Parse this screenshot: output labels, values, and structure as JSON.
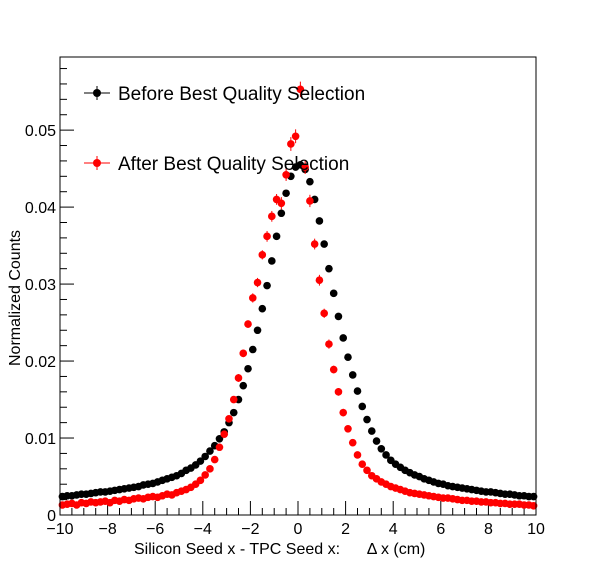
{
  "chart_data": {
    "type": "scatter",
    "title": "",
    "xlabel": "Silicon Seed x - TPC Seed x:      Δ x (cm)",
    "ylabel": "Normalized Counts",
    "xlim": [
      -10,
      10
    ],
    "ylim": [
      0,
      0.0595
    ],
    "x_ticks": [
      -10,
      -8,
      -6,
      -4,
      -2,
      0,
      2,
      4,
      6,
      8,
      10
    ],
    "x_tick_labels": [
      "−10",
      "−8",
      "−6",
      "−4",
      "−2",
      "0",
      "2",
      "4",
      "6",
      "8",
      "10"
    ],
    "y_ticks": [
      0,
      0.01,
      0.02,
      0.03,
      0.04,
      0.05
    ],
    "y_tick_labels": [
      "0",
      "0.01",
      "0.02",
      "0.03",
      "0.04",
      "0.05"
    ],
    "grid": false,
    "legend_position": "top-left",
    "series": [
      {
        "name": "Before Best Quality Selection",
        "color": "#000000",
        "x": [
          -9.9,
          -9.7,
          -9.5,
          -9.3,
          -9.1,
          -8.9,
          -8.7,
          -8.5,
          -8.3,
          -8.1,
          -7.9,
          -7.7,
          -7.5,
          -7.3,
          -7.1,
          -6.9,
          -6.7,
          -6.5,
          -6.3,
          -6.1,
          -5.9,
          -5.7,
          -5.5,
          -5.3,
          -5.1,
          -4.9,
          -4.7,
          -4.5,
          -4.3,
          -4.1,
          -3.9,
          -3.7,
          -3.5,
          -3.3,
          -3.1,
          -2.9,
          -2.7,
          -2.5,
          -2.3,
          -2.1,
          -1.9,
          -1.7,
          -1.5,
          -1.3,
          -1.1,
          -0.9,
          -0.7,
          -0.5,
          -0.3,
          -0.1,
          0.1,
          0.3,
          0.5,
          0.7,
          0.9,
          1.1,
          1.3,
          1.5,
          1.7,
          1.9,
          2.1,
          2.3,
          2.5,
          2.7,
          2.9,
          3.1,
          3.3,
          3.5,
          3.7,
          3.9,
          4.1,
          4.3,
          4.5,
          4.7,
          4.9,
          5.1,
          5.3,
          5.5,
          5.7,
          5.9,
          6.1,
          6.3,
          6.5,
          6.7,
          6.9,
          7.1,
          7.3,
          7.5,
          7.7,
          7.9,
          8.1,
          8.3,
          8.5,
          8.7,
          8.9,
          9.1,
          9.3,
          9.5,
          9.7,
          9.9
        ],
        "values": [
          0.0024,
          0.0025,
          0.0025,
          0.0026,
          0.0027,
          0.0027,
          0.0028,
          0.0029,
          0.003,
          0.003,
          0.0031,
          0.0032,
          0.0033,
          0.0034,
          0.0035,
          0.0036,
          0.0037,
          0.0039,
          0.004,
          0.0041,
          0.0043,
          0.0045,
          0.0047,
          0.0049,
          0.0051,
          0.0054,
          0.0058,
          0.0061,
          0.0065,
          0.007,
          0.0076,
          0.0083,
          0.009,
          0.0099,
          0.0108,
          0.012,
          0.0133,
          0.015,
          0.0168,
          0.019,
          0.0215,
          0.024,
          0.0268,
          0.0298,
          0.033,
          0.0362,
          0.0392,
          0.0418,
          0.044,
          0.0452,
          0.0455,
          0.0449,
          0.0433,
          0.041,
          0.0382,
          0.0352,
          0.032,
          0.0288,
          0.0258,
          0.023,
          0.0205,
          0.0182,
          0.0161,
          0.0141,
          0.0124,
          0.0109,
          0.0096,
          0.0086,
          0.0078,
          0.0071,
          0.0066,
          0.0062,
          0.0058,
          0.0055,
          0.0052,
          0.005,
          0.0047,
          0.0045,
          0.0043,
          0.0041,
          0.004,
          0.0038,
          0.0037,
          0.0036,
          0.0035,
          0.0034,
          0.0033,
          0.0032,
          0.0031,
          0.003,
          0.003,
          0.0029,
          0.0028,
          0.0027,
          0.0027,
          0.0026,
          0.0025,
          0.0025,
          0.0024,
          0.0024
        ],
        "errors": [
          0.0001,
          0.0001,
          0.0001,
          0.0001,
          0.0001,
          0.0001,
          0.0001,
          0.0001,
          0.0001,
          0.0001,
          0.0001,
          0.0001,
          0.0001,
          0.0001,
          0.0001,
          0.0001,
          0.0001,
          0.0001,
          0.0001,
          0.0001,
          0.0001,
          0.0001,
          0.0001,
          0.0001,
          0.0001,
          0.0001,
          0.0001,
          0.0001,
          0.0001,
          0.0001,
          0.0001,
          0.0001,
          0.0001,
          0.0002,
          0.0002,
          0.0002,
          0.0002,
          0.0002,
          0.0002,
          0.0002,
          0.0002,
          0.0003,
          0.0003,
          0.0003,
          0.0003,
          0.0003,
          0.0003,
          0.0003,
          0.0003,
          0.0003,
          0.0003,
          0.0003,
          0.0003,
          0.0003,
          0.0003,
          0.0003,
          0.0003,
          0.0003,
          0.0003,
          0.0002,
          0.0002,
          0.0002,
          0.0002,
          0.0002,
          0.0002,
          0.0002,
          0.0002,
          0.0001,
          0.0001,
          0.0001,
          0.0001,
          0.0001,
          0.0001,
          0.0001,
          0.0001,
          0.0001,
          0.0001,
          0.0001,
          0.0001,
          0.0001,
          0.0001,
          0.0001,
          0.0001,
          0.0001,
          0.0001,
          0.0001,
          0.0001,
          0.0001,
          0.0001,
          0.0001,
          0.0001,
          0.0001,
          0.0001,
          0.0001,
          0.0001,
          0.0001,
          0.0001,
          0.0001,
          0.0001,
          0.0001
        ]
      },
      {
        "name": "After Best Quality Selection",
        "color": "#ff0000",
        "x": [
          -9.9,
          -9.7,
          -9.5,
          -9.3,
          -9.1,
          -8.9,
          -8.7,
          -8.5,
          -8.3,
          -8.1,
          -7.9,
          -7.7,
          -7.5,
          -7.3,
          -7.1,
          -6.9,
          -6.7,
          -6.5,
          -6.3,
          -6.1,
          -5.9,
          -5.7,
          -5.5,
          -5.3,
          -5.1,
          -4.9,
          -4.7,
          -4.5,
          -4.3,
          -4.1,
          -3.9,
          -3.7,
          -3.5,
          -3.3,
          -3.1,
          -2.9,
          -2.7,
          -2.5,
          -2.3,
          -2.1,
          -1.9,
          -1.7,
          -1.5,
          -1.3,
          -1.1,
          -0.9,
          -0.7,
          -0.5,
          -0.3,
          -0.1,
          0.1,
          0.3,
          0.5,
          0.7,
          0.9,
          1.1,
          1.3,
          1.5,
          1.7,
          1.9,
          2.1,
          2.3,
          2.5,
          2.7,
          2.9,
          3.1,
          3.3,
          3.5,
          3.7,
          3.9,
          4.1,
          4.3,
          4.5,
          4.7,
          4.9,
          5.1,
          5.3,
          5.5,
          5.7,
          5.9,
          6.1,
          6.3,
          6.5,
          6.7,
          6.9,
          7.1,
          7.3,
          7.5,
          7.7,
          7.9,
          8.1,
          8.3,
          8.5,
          8.7,
          8.9,
          9.1,
          9.3,
          9.5,
          9.7,
          9.9
        ],
        "values": [
          0.0013,
          0.0014,
          0.0015,
          0.0013,
          0.0016,
          0.0015,
          0.0017,
          0.0016,
          0.0017,
          0.0018,
          0.0016,
          0.0019,
          0.0018,
          0.002,
          0.0019,
          0.0021,
          0.0022,
          0.0021,
          0.0023,
          0.0024,
          0.0023,
          0.0025,
          0.0027,
          0.0026,
          0.0029,
          0.0031,
          0.0033,
          0.0036,
          0.004,
          0.0045,
          0.0052,
          0.006,
          0.0072,
          0.0088,
          0.0105,
          0.0125,
          0.015,
          0.0178,
          0.021,
          0.0248,
          0.0282,
          0.0302,
          0.0338,
          0.0362,
          0.0388,
          0.041,
          0.0405,
          0.0442,
          0.0482,
          0.0492,
          0.0553,
          0.0452,
          0.0408,
          0.0352,
          0.0305,
          0.0262,
          0.0222,
          0.0189,
          0.016,
          0.0133,
          0.0112,
          0.0094,
          0.0078,
          0.0066,
          0.0058,
          0.0051,
          0.0047,
          0.0043,
          0.004,
          0.0037,
          0.0035,
          0.0033,
          0.0031,
          0.0029,
          0.0028,
          0.0027,
          0.0026,
          0.0025,
          0.0024,
          0.0023,
          0.0022,
          0.0022,
          0.0021,
          0.002,
          0.0019,
          0.0019,
          0.0018,
          0.0018,
          0.0017,
          0.0017,
          0.0016,
          0.0016,
          0.0015,
          0.0015,
          0.0014,
          0.0014,
          0.0014,
          0.0013,
          0.0013,
          0.0012
        ],
        "errors": [
          0.0002,
          0.0002,
          0.0002,
          0.0002,
          0.0002,
          0.0002,
          0.0002,
          0.0002,
          0.0002,
          0.0002,
          0.0002,
          0.0002,
          0.0002,
          0.0002,
          0.0002,
          0.0002,
          0.0002,
          0.0002,
          0.0002,
          0.0002,
          0.0002,
          0.0002,
          0.0002,
          0.0002,
          0.0002,
          0.0002,
          0.0002,
          0.0003,
          0.0003,
          0.0003,
          0.0003,
          0.0003,
          0.0003,
          0.0004,
          0.0004,
          0.0004,
          0.0004,
          0.0005,
          0.0005,
          0.0005,
          0.0006,
          0.0006,
          0.0006,
          0.0007,
          0.0007,
          0.0007,
          0.0008,
          0.0008,
          0.0009,
          0.0009,
          0.001,
          0.0009,
          0.0008,
          0.0007,
          0.0007,
          0.0006,
          0.0006,
          0.0005,
          0.0005,
          0.0005,
          0.0004,
          0.0004,
          0.0004,
          0.0003,
          0.0003,
          0.0003,
          0.0003,
          0.0003,
          0.0003,
          0.0003,
          0.0002,
          0.0002,
          0.0002,
          0.0002,
          0.0002,
          0.0002,
          0.0002,
          0.0002,
          0.0002,
          0.0002,
          0.0002,
          0.0002,
          0.0002,
          0.0002,
          0.0002,
          0.0002,
          0.0002,
          0.0002,
          0.0002,
          0.0002,
          0.0002,
          0.0002,
          0.0002,
          0.0002,
          0.0002,
          0.0002,
          0.0002,
          0.0002,
          0.0002,
          0.0002
        ]
      }
    ]
  }
}
